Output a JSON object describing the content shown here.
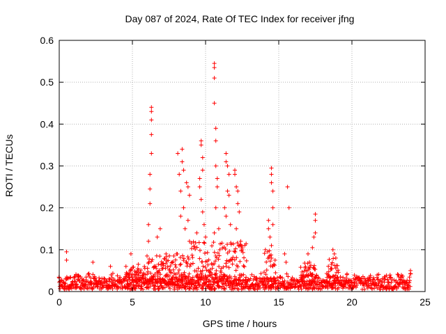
{
  "chart_data": {
    "type": "scatter",
    "title": "Day 087 of 2024, Rate Of TEC Index for receiver jfng",
    "xlabel": "GPS time / hours",
    "ylabel": "ROTI / TECUs",
    "xlim": [
      0,
      25
    ],
    "ylim": [
      0,
      0.6
    ],
    "xticks": [
      0,
      5,
      10,
      15,
      20,
      25
    ],
    "yticks": [
      0,
      0.1,
      0.2,
      0.3,
      0.4,
      0.5,
      0.6
    ],
    "xtick_labels": [
      "0",
      "5",
      "10",
      "15",
      "20",
      "25"
    ],
    "ytick_labels": [
      "0",
      "0.1",
      "0.2",
      "0.3",
      "0.4",
      "0.5",
      "0.6"
    ],
    "grid": true,
    "marker": "+",
    "marker_color": "#ff0000",
    "series": [
      {
        "name": "ROTI",
        "points": [
          [
            0.5,
            0.095
          ],
          [
            0.5,
            0.075
          ],
          [
            2.3,
            0.07
          ],
          [
            3.5,
            0.06
          ],
          [
            4.9,
            0.09
          ],
          [
            5.4,
            0.065
          ],
          [
            6.0,
            0.085
          ],
          [
            6.1,
            0.16
          ],
          [
            6.2,
            0.245
          ],
          [
            6.2,
            0.28
          ],
          [
            6.3,
            0.33
          ],
          [
            6.3,
            0.375
          ],
          [
            6.3,
            0.41
          ],
          [
            6.3,
            0.43
          ],
          [
            6.3,
            0.44
          ],
          [
            6.2,
            0.21
          ],
          [
            6.1,
            0.12
          ],
          [
            6.7,
            0.13
          ],
          [
            6.9,
            0.15
          ],
          [
            7.3,
            0.09
          ],
          [
            8.1,
            0.33
          ],
          [
            8.2,
            0.28
          ],
          [
            8.3,
            0.24
          ],
          [
            8.4,
            0.34
          ],
          [
            8.4,
            0.31
          ],
          [
            8.5,
            0.29
          ],
          [
            8.5,
            0.2
          ],
          [
            8.3,
            0.18
          ],
          [
            8.6,
            0.15
          ],
          [
            8.7,
            0.26
          ],
          [
            8.8,
            0.25
          ],
          [
            8.9,
            0.23
          ],
          [
            8.8,
            0.17
          ],
          [
            8.9,
            0.12
          ],
          [
            9.4,
            0.14
          ],
          [
            9.6,
            0.27
          ],
          [
            9.6,
            0.25
          ],
          [
            9.7,
            0.36
          ],
          [
            9.7,
            0.35
          ],
          [
            9.8,
            0.32
          ],
          [
            9.8,
            0.29
          ],
          [
            9.7,
            0.22
          ],
          [
            9.8,
            0.19
          ],
          [
            9.9,
            0.16
          ],
          [
            10.0,
            0.13
          ],
          [
            10.6,
            0.545
          ],
          [
            10.6,
            0.535
          ],
          [
            10.6,
            0.51
          ],
          [
            10.6,
            0.45
          ],
          [
            10.7,
            0.39
          ],
          [
            10.7,
            0.36
          ],
          [
            10.7,
            0.3
          ],
          [
            10.8,
            0.27
          ],
          [
            10.8,
            0.25
          ],
          [
            10.7,
            0.2
          ],
          [
            10.9,
            0.15
          ],
          [
            10.6,
            0.14
          ],
          [
            11.4,
            0.33
          ],
          [
            11.4,
            0.31
          ],
          [
            11.5,
            0.3
          ],
          [
            11.6,
            0.28
          ],
          [
            11.5,
            0.24
          ],
          [
            11.6,
            0.23
          ],
          [
            11.3,
            0.2
          ],
          [
            11.4,
            0.18
          ],
          [
            11.7,
            0.16
          ],
          [
            12.0,
            0.29
          ],
          [
            12.0,
            0.28
          ],
          [
            12.1,
            0.25
          ],
          [
            12.2,
            0.24
          ],
          [
            12.2,
            0.21
          ],
          [
            12.3,
            0.19
          ],
          [
            12.1,
            0.15
          ],
          [
            12.4,
            0.12
          ],
          [
            12.5,
            0.1
          ],
          [
            14.3,
            0.17
          ],
          [
            14.3,
            0.15
          ],
          [
            14.4,
            0.13
          ],
          [
            14.5,
            0.295
          ],
          [
            14.5,
            0.28
          ],
          [
            14.5,
            0.26
          ],
          [
            14.6,
            0.24
          ],
          [
            14.6,
            0.2
          ],
          [
            14.6,
            0.16
          ],
          [
            14.5,
            0.11
          ],
          [
            15.6,
            0.25
          ],
          [
            15.7,
            0.2
          ],
          [
            15.4,
            0.09
          ],
          [
            15.5,
            0.07
          ],
          [
            17.0,
            0.09
          ],
          [
            17.1,
            0.07
          ],
          [
            17.3,
            0.105
          ],
          [
            17.5,
            0.185
          ],
          [
            17.5,
            0.17
          ],
          [
            17.5,
            0.14
          ],
          [
            17.4,
            0.13
          ],
          [
            18.7,
            0.1
          ],
          [
            18.8,
            0.09
          ],
          [
            18.9,
            0.08
          ],
          [
            18.6,
            0.065
          ],
          [
            24.0,
            0.05
          ]
        ],
        "baseline_noise_range": [
          0.005,
          0.045
        ]
      }
    ]
  }
}
